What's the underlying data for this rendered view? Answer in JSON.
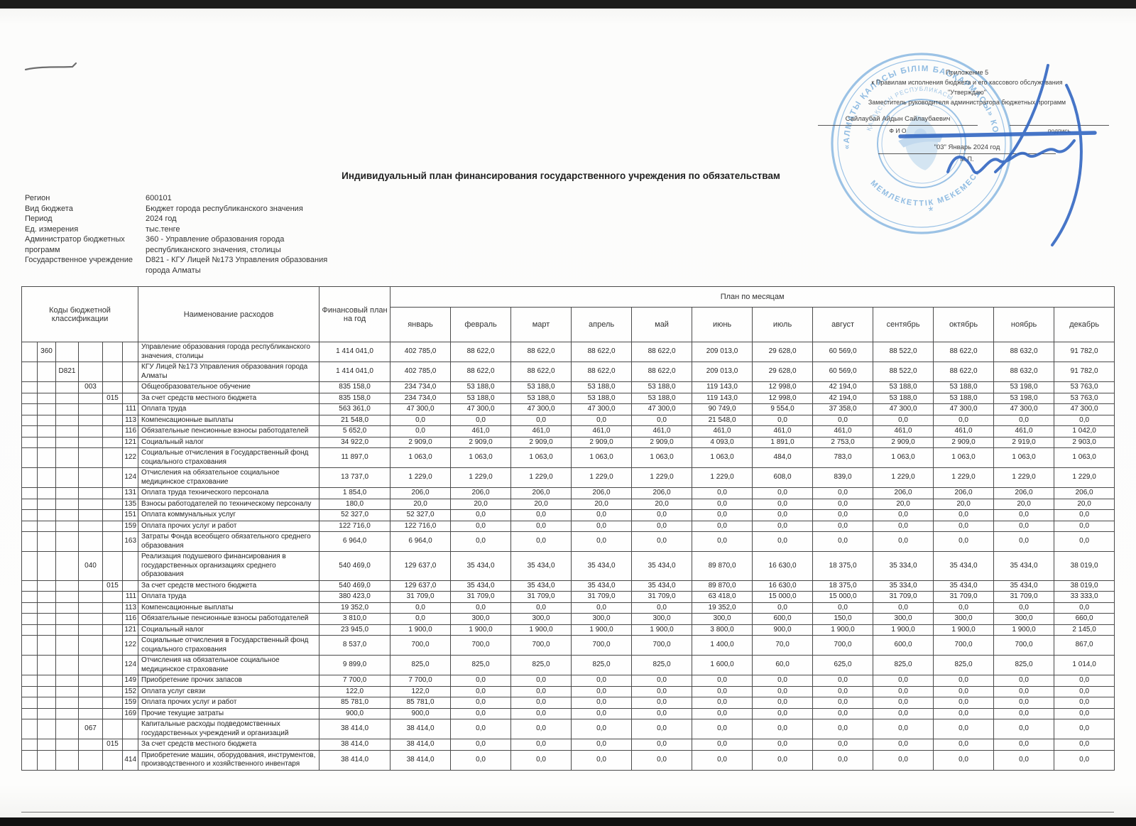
{
  "annotation": {
    "appendix": "Приложение 5",
    "rules_line": "к Правилам исполнения бюджета и его кассового обслуживания",
    "approve": "\"Утверждаю\"",
    "approver_title": "Заместитель руководителя администратора бюджетных программ",
    "approver_name": "Сайлаубай Айдын Сайлаубаевич",
    "fio_label": "Ф И О",
    "signature_label": "подпись",
    "date_line": "\"03\"  Январь   2024 год",
    "mp_label": "М.П."
  },
  "stamp": {
    "outer_text": "«АЛМАТЫ ҚАЛАСЫ БІЛІМ БАСҚАРМАСЫ» КОММУНАЛДЫҚ",
    "bottom_text": "МЕМЛЕКЕТТІК МЕКЕМЕСІ",
    "inner_text": "ҚАЗАҚСТАН РЕСПУБЛИКАСЫ",
    "star": "*",
    "ink_color": "#7fb2de"
  },
  "title": "Индивидуальный план финансирования государственного учреждения по обязательствам",
  "meta": [
    {
      "label": "Регион",
      "value": "600101"
    },
    {
      "label": "Вид бюджета",
      "value": "Бюджет города республиканского значения"
    },
    {
      "label": "Период",
      "value": "2024 год"
    },
    {
      "label": "Ед. измерения",
      "value": "тыс.тенге"
    },
    {
      "label": "Администратор бюджетных программ",
      "value": "360 - Управление образования города республиканского значения, столицы"
    },
    {
      "label": "Государственное учреждение",
      "value": "D821 - КГУ Лицей №173 Управления образования города Алматы"
    }
  ],
  "table": {
    "codes_header": "Коды бюджетной классификации",
    "name_header": "Наименование расходов",
    "year_header": "Финансовый план на год",
    "months_group_header": "План по месяцам",
    "months": [
      "январь",
      "февраль",
      "март",
      "апрель",
      "май",
      "июнь",
      "июль",
      "август",
      "сентябрь",
      "октябрь",
      "ноябрь",
      "декабрь"
    ],
    "rows": [
      {
        "codes": [
          "",
          "360",
          "",
          "",
          "",
          ""
        ],
        "name": "Управление образования города республиканского значения, столицы",
        "year": "1 414 041,0",
        "values": [
          "402 785,0",
          "88 622,0",
          "88 622,0",
          "88 622,0",
          "88 622,0",
          "209 013,0",
          "29 628,0",
          "60 569,0",
          "88 522,0",
          "88 622,0",
          "88 632,0",
          "91 782,0"
        ]
      },
      {
        "codes": [
          "",
          "",
          "D821",
          "",
          "",
          ""
        ],
        "name": "КГУ Лицей №173 Управления образования города Алматы",
        "year": "1 414 041,0",
        "values": [
          "402 785,0",
          "88 622,0",
          "88 622,0",
          "88 622,0",
          "88 622,0",
          "209 013,0",
          "29 628,0",
          "60 569,0",
          "88 522,0",
          "88 622,0",
          "88 632,0",
          "91 782,0"
        ]
      },
      {
        "codes": [
          "",
          "",
          "",
          "003",
          "",
          ""
        ],
        "name": "Общеобразовательное обучение",
        "year": "835 158,0",
        "values": [
          "234 734,0",
          "53 188,0",
          "53 188,0",
          "53 188,0",
          "53 188,0",
          "119 143,0",
          "12 998,0",
          "42 194,0",
          "53 188,0",
          "53 188,0",
          "53 198,0",
          "53 763,0"
        ]
      },
      {
        "codes": [
          "",
          "",
          "",
          "",
          "015",
          ""
        ],
        "name": "За счет средств местного бюджета",
        "year": "835 158,0",
        "values": [
          "234 734,0",
          "53 188,0",
          "53 188,0",
          "53 188,0",
          "53 188,0",
          "119 143,0",
          "12 998,0",
          "42 194,0",
          "53 188,0",
          "53 188,0",
          "53 198,0",
          "53 763,0"
        ]
      },
      {
        "codes": [
          "",
          "",
          "",
          "",
          "",
          "111"
        ],
        "name": "Оплата труда",
        "year": "563 361,0",
        "values": [
          "47 300,0",
          "47 300,0",
          "47 300,0",
          "47 300,0",
          "47 300,0",
          "90 749,0",
          "9 554,0",
          "37 358,0",
          "47 300,0",
          "47 300,0",
          "47 300,0",
          "47 300,0"
        ]
      },
      {
        "codes": [
          "",
          "",
          "",
          "",
          "",
          "113"
        ],
        "name": "Компенсационные выплаты",
        "year": "21 548,0",
        "values": [
          "0,0",
          "0,0",
          "0,0",
          "0,0",
          "0,0",
          "21 548,0",
          "0,0",
          "0,0",
          "0,0",
          "0,0",
          "0,0",
          "0,0"
        ]
      },
      {
        "codes": [
          "",
          "",
          "",
          "",
          "",
          "116"
        ],
        "name": "Обязательные пенсионные взносы работодателей",
        "year": "5 652,0",
        "values": [
          "0,0",
          "461,0",
          "461,0",
          "461,0",
          "461,0",
          "461,0",
          "461,0",
          "461,0",
          "461,0",
          "461,0",
          "461,0",
          "1 042,0"
        ]
      },
      {
        "codes": [
          "",
          "",
          "",
          "",
          "",
          "121"
        ],
        "name": "Социальный налог",
        "year": "34 922,0",
        "values": [
          "2 909,0",
          "2 909,0",
          "2 909,0",
          "2 909,0",
          "2 909,0",
          "4 093,0",
          "1 891,0",
          "2 753,0",
          "2 909,0",
          "2 909,0",
          "2 919,0",
          "2 903,0"
        ]
      },
      {
        "codes": [
          "",
          "",
          "",
          "",
          "",
          "122"
        ],
        "name": "Социальные отчисления в Государственный фонд социального страхования",
        "year": "11 897,0",
        "values": [
          "1 063,0",
          "1 063,0",
          "1 063,0",
          "1 063,0",
          "1 063,0",
          "1 063,0",
          "484,0",
          "783,0",
          "1 063,0",
          "1 063,0",
          "1 063,0",
          "1 063,0"
        ]
      },
      {
        "codes": [
          "",
          "",
          "",
          "",
          "",
          "124"
        ],
        "name": "Отчисления на обязательное социальное медицинское страхование",
        "year": "13 737,0",
        "values": [
          "1 229,0",
          "1 229,0",
          "1 229,0",
          "1 229,0",
          "1 229,0",
          "1 229,0",
          "608,0",
          "839,0",
          "1 229,0",
          "1 229,0",
          "1 229,0",
          "1 229,0"
        ]
      },
      {
        "codes": [
          "",
          "",
          "",
          "",
          "",
          "131"
        ],
        "name": "Оплата труда технического персонала",
        "year": "1 854,0",
        "values": [
          "206,0",
          "206,0",
          "206,0",
          "206,0",
          "206,0",
          "0,0",
          "0,0",
          "0,0",
          "206,0",
          "206,0",
          "206,0",
          "206,0"
        ]
      },
      {
        "codes": [
          "",
          "",
          "",
          "",
          "",
          "135"
        ],
        "name": "Взносы работодателей по техническому персоналу",
        "year": "180,0",
        "values": [
          "20,0",
          "20,0",
          "20,0",
          "20,0",
          "20,0",
          "0,0",
          "0,0",
          "0,0",
          "20,0",
          "20,0",
          "20,0",
          "20,0"
        ]
      },
      {
        "codes": [
          "",
          "",
          "",
          "",
          "",
          "151"
        ],
        "name": "Оплата коммунальных услуг",
        "year": "52 327,0",
        "values": [
          "52 327,0",
          "0,0",
          "0,0",
          "0,0",
          "0,0",
          "0,0",
          "0,0",
          "0,0",
          "0,0",
          "0,0",
          "0,0",
          "0,0"
        ]
      },
      {
        "codes": [
          "",
          "",
          "",
          "",
          "",
          "159"
        ],
        "name": "Оплата прочих услуг и работ",
        "year": "122 716,0",
        "values": [
          "122 716,0",
          "0,0",
          "0,0",
          "0,0",
          "0,0",
          "0,0",
          "0,0",
          "0,0",
          "0,0",
          "0,0",
          "0,0",
          "0,0"
        ]
      },
      {
        "codes": [
          "",
          "",
          "",
          "",
          "",
          "163"
        ],
        "name": "Затраты Фонда всеобщего обязательного среднего образования",
        "year": "6 964,0",
        "values": [
          "6 964,0",
          "0,0",
          "0,0",
          "0,0",
          "0,0",
          "0,0",
          "0,0",
          "0,0",
          "0,0",
          "0,0",
          "0,0",
          "0,0"
        ]
      },
      {
        "codes": [
          "",
          "",
          "",
          "040",
          "",
          ""
        ],
        "name": "Реализация  подушевого финансирования в государственных организациях среднего образования",
        "year": "540 469,0",
        "values": [
          "129 637,0",
          "35 434,0",
          "35 434,0",
          "35 434,0",
          "35 434,0",
          "89 870,0",
          "16 630,0",
          "18 375,0",
          "35 334,0",
          "35 434,0",
          "35 434,0",
          "38 019,0"
        ]
      },
      {
        "codes": [
          "",
          "",
          "",
          "",
          "015",
          ""
        ],
        "name": "За счет средств местного бюджета",
        "year": "540 469,0",
        "values": [
          "129 637,0",
          "35 434,0",
          "35 434,0",
          "35 434,0",
          "35 434,0",
          "89 870,0",
          "16 630,0",
          "18 375,0",
          "35 334,0",
          "35 434,0",
          "35 434,0",
          "38 019,0"
        ]
      },
      {
        "codes": [
          "",
          "",
          "",
          "",
          "",
          "111"
        ],
        "name": "Оплата труда",
        "year": "380 423,0",
        "values": [
          "31 709,0",
          "31 709,0",
          "31 709,0",
          "31 709,0",
          "31 709,0",
          "63 418,0",
          "15 000,0",
          "15 000,0",
          "31 709,0",
          "31 709,0",
          "31 709,0",
          "33 333,0"
        ]
      },
      {
        "codes": [
          "",
          "",
          "",
          "",
          "",
          "113"
        ],
        "name": "Компенсационные выплаты",
        "year": "19 352,0",
        "values": [
          "0,0",
          "0,0",
          "0,0",
          "0,0",
          "0,0",
          "19 352,0",
          "0,0",
          "0,0",
          "0,0",
          "0,0",
          "0,0",
          "0,0"
        ]
      },
      {
        "codes": [
          "",
          "",
          "",
          "",
          "",
          "116"
        ],
        "name": "Обязательные пенсионные взносы работодателей",
        "year": "3 810,0",
        "values": [
          "0,0",
          "300,0",
          "300,0",
          "300,0",
          "300,0",
          "300,0",
          "600,0",
          "150,0",
          "300,0",
          "300,0",
          "300,0",
          "660,0"
        ]
      },
      {
        "codes": [
          "",
          "",
          "",
          "",
          "",
          "121"
        ],
        "name": "Социальный налог",
        "year": "23 945,0",
        "values": [
          "1 900,0",
          "1 900,0",
          "1 900,0",
          "1 900,0",
          "1 900,0",
          "3 800,0",
          "900,0",
          "1 900,0",
          "1 900,0",
          "1 900,0",
          "1 900,0",
          "2 145,0"
        ]
      },
      {
        "codes": [
          "",
          "",
          "",
          "",
          "",
          "122"
        ],
        "name": "Социальные отчисления в Государственный фонд социального страхования",
        "year": "8 537,0",
        "values": [
          "700,0",
          "700,0",
          "700,0",
          "700,0",
          "700,0",
          "1 400,0",
          "70,0",
          "700,0",
          "600,0",
          "700,0",
          "700,0",
          "867,0"
        ]
      },
      {
        "codes": [
          "",
          "",
          "",
          "",
          "",
          "124"
        ],
        "name": "Отчисления на обязательное социальное медицинское страхование",
        "year": "9 899,0",
        "values": [
          "825,0",
          "825,0",
          "825,0",
          "825,0",
          "825,0",
          "1 600,0",
          "60,0",
          "625,0",
          "825,0",
          "825,0",
          "825,0",
          "1 014,0"
        ]
      },
      {
        "codes": [
          "",
          "",
          "",
          "",
          "",
          "149"
        ],
        "name": "Приобретение прочих запасов",
        "year": "7 700,0",
        "values": [
          "7 700,0",
          "0,0",
          "0,0",
          "0,0",
          "0,0",
          "0,0",
          "0,0",
          "0,0",
          "0,0",
          "0,0",
          "0,0",
          "0,0"
        ]
      },
      {
        "codes": [
          "",
          "",
          "",
          "",
          "",
          "152"
        ],
        "name": "Оплата услуг связи",
        "year": "122,0",
        "values": [
          "122,0",
          "0,0",
          "0,0",
          "0,0",
          "0,0",
          "0,0",
          "0,0",
          "0,0",
          "0,0",
          "0,0",
          "0,0",
          "0,0"
        ]
      },
      {
        "codes": [
          "",
          "",
          "",
          "",
          "",
          "159"
        ],
        "name": "Оплата прочих услуг и работ",
        "year": "85 781,0",
        "values": [
          "85 781,0",
          "0,0",
          "0,0",
          "0,0",
          "0,0",
          "0,0",
          "0,0",
          "0,0",
          "0,0",
          "0,0",
          "0,0",
          "0,0"
        ]
      },
      {
        "codes": [
          "",
          "",
          "",
          "",
          "",
          "169"
        ],
        "name": "Прочие текущие затраты",
        "year": "900,0",
        "values": [
          "900,0",
          "0,0",
          "0,0",
          "0,0",
          "0,0",
          "0,0",
          "0,0",
          "0,0",
          "0,0",
          "0,0",
          "0,0",
          "0,0"
        ]
      },
      {
        "codes": [
          "",
          "",
          "",
          "067",
          "",
          ""
        ],
        "name": "Капитальные расходы подведомственных государственных учреждений и организаций",
        "year": "38 414,0",
        "values": [
          "38 414,0",
          "0,0",
          "0,0",
          "0,0",
          "0,0",
          "0,0",
          "0,0",
          "0,0",
          "0,0",
          "0,0",
          "0,0",
          "0,0"
        ]
      },
      {
        "codes": [
          "",
          "",
          "",
          "",
          "015",
          ""
        ],
        "name": "За счет средств местного бюджета",
        "year": "38 414,0",
        "values": [
          "38 414,0",
          "0,0",
          "0,0",
          "0,0",
          "0,0",
          "0,0",
          "0,0",
          "0,0",
          "0,0",
          "0,0",
          "0,0",
          "0,0"
        ]
      },
      {
        "codes": [
          "",
          "",
          "",
          "",
          "",
          "414"
        ],
        "name": "Приобретение машин, оборудования, инструментов, производственного и хозяйственного инвентаря",
        "year": "38 414,0",
        "values": [
          "38 414,0",
          "0,0",
          "0,0",
          "0,0",
          "0,0",
          "0,0",
          "0,0",
          "0,0",
          "0,0",
          "0,0",
          "0,0",
          "0,0"
        ]
      }
    ]
  }
}
